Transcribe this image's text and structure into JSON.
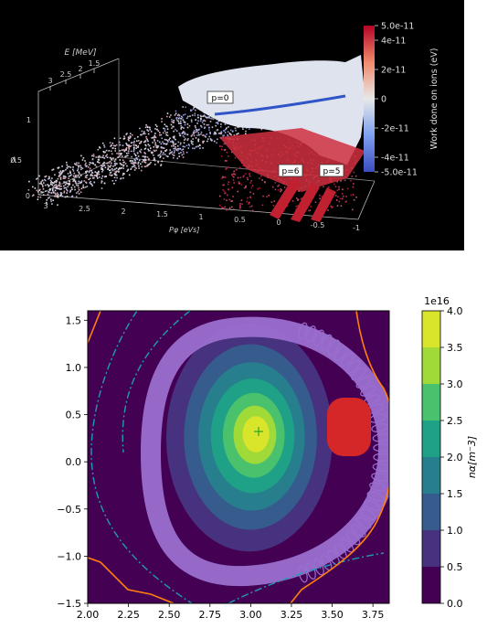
{
  "colors": {
    "background_dark": "#000000",
    "axis_light": "#cccccc",
    "purple_region": "#9b6fd0",
    "red_region": "#d62728",
    "orange_line": "#ff7f0e",
    "dashdot_line": "#1f9bb5",
    "cross_marker": "#2ca02c"
  },
  "chart_data": [
    {
      "type": "scatter",
      "plot_kind": "3D scatter",
      "axes": {
        "z_label": "E [MeV]",
        "z_ticks": [
          "3",
          "2.5",
          "2",
          "1.5"
        ],
        "y_label": "Λ",
        "y_ticks": [
          "1",
          "0.5",
          "0"
        ],
        "x_label": "Pφ [eVs]",
        "x_ticks": [
          "3",
          "2.5",
          "2",
          "1.5",
          "1",
          "0.5",
          "0",
          "-0.5",
          "-1"
        ]
      },
      "colorbar": {
        "label": "Work done on ions (eV)",
        "ticks": [
          "5.0e-11",
          "4e-11",
          "2e-11",
          "0",
          "-2e-11",
          "-4e-11",
          "-5.0e-11"
        ],
        "range": [
          -5e-11,
          5e-11
        ],
        "colormap": "blue-white-red"
      },
      "annotations": [
        "p=0",
        "p=6",
        "p=5"
      ]
    },
    {
      "type": "heatmap",
      "plot_kind": "filled contour",
      "x_ticks": [
        "2.00",
        "2.25",
        "2.50",
        "2.75",
        "3.00",
        "3.25",
        "3.50",
        "3.75"
      ],
      "y_ticks": [
        "1.5",
        "1.0",
        "0.5",
        "0.0",
        "−0.5",
        "−1.0",
        "−1.5"
      ],
      "xlim": [
        2.0,
        3.85
      ],
      "ylim": [
        -1.5,
        1.6
      ],
      "peak_location": [
        3.03,
        0.3
      ],
      "colorbar": {
        "label": "nα[m⁻3]",
        "offset": "1e16",
        "ticks": [
          "4.0",
          "3.5",
          "3.0",
          "2.5",
          "2.0",
          "1.5",
          "1.0",
          "0.5",
          "0.0"
        ],
        "range": [
          0.0,
          4.0
        ],
        "levels": [
          0.0,
          0.5,
          1.0,
          1.5,
          2.0,
          2.5,
          3.0,
          3.5,
          4.0
        ],
        "level_colors": [
          "#440154",
          "#46327e",
          "#365c8d",
          "#277f8e",
          "#1fa187",
          "#4ac16d",
          "#a0da39",
          "#d9e52a"
        ]
      }
    }
  ]
}
